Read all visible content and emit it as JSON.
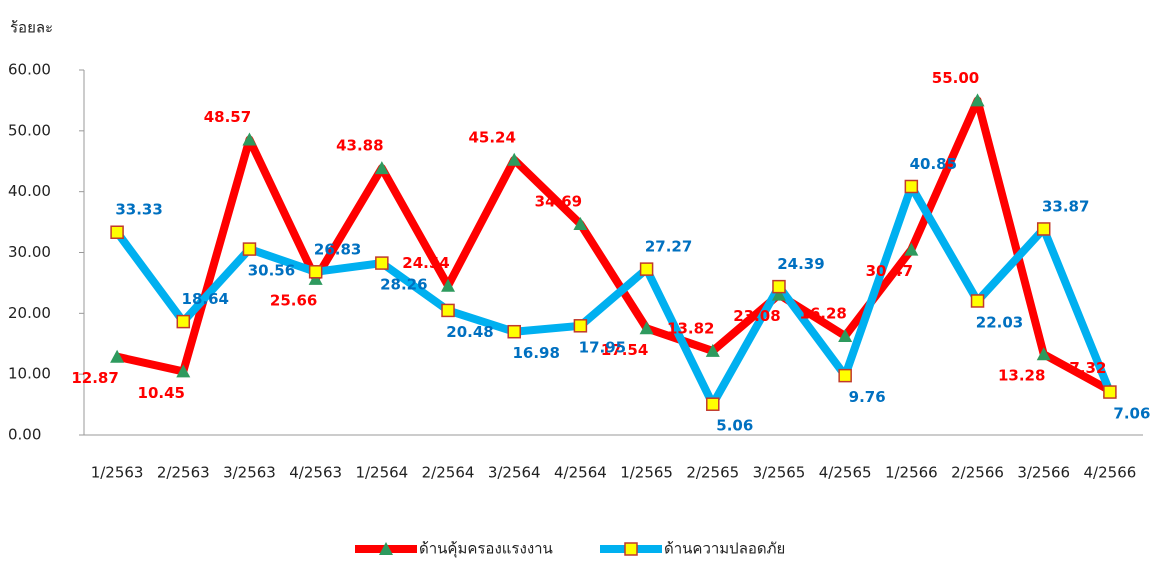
{
  "chart_data": {
    "type": "line",
    "y_label": "ร้อยละ",
    "categories": [
      "1/2563",
      "2/2563",
      "3/2563",
      "4/2563",
      "1/2564",
      "2/2564",
      "3/2564",
      "4/2564",
      "1/2565",
      "2/2565",
      "3/2565",
      "4/2565",
      "1/2566",
      "2/2566",
      "3/2566",
      "4/2566"
    ],
    "series": [
      {
        "name": "ด้านคุ้มครองแรงงาน",
        "color": "#ff0000",
        "marker_color": "#2e9a5e",
        "values": [
          12.87,
          10.45,
          48.57,
          25.66,
          43.88,
          24.54,
          45.24,
          34.69,
          17.54,
          13.82,
          23.08,
          16.28,
          30.47,
          55.0,
          13.28,
          7.32
        ],
        "value_labels": [
          "12.87",
          "10.45",
          "48.57",
          "25.66",
          "43.88",
          "24.54",
          "45.24",
          "34.69",
          "17.54",
          "13.82",
          "23.08",
          "16.28",
          "30.47",
          "55.00",
          "13.28",
          "7.32"
        ]
      },
      {
        "name": "ด้านความปลอดภัย",
        "color": "#00b0f0",
        "marker_color": "#ffff00",
        "values": [
          33.33,
          18.64,
          30.56,
          26.83,
          28.26,
          20.48,
          16.98,
          17.95,
          27.27,
          5.06,
          24.39,
          9.76,
          40.85,
          22.03,
          33.87,
          7.06
        ],
        "value_labels": [
          "33.33",
          "18.64",
          "30.56",
          "26.83",
          "28.26",
          "20.48",
          "16.98",
          "17.95",
          "27.27",
          "5.06",
          "24.39",
          "9.76",
          "40.85",
          "22.03",
          "33.87",
          "7.06"
        ]
      }
    ],
    "ylim": [
      0,
      60
    ],
    "yticks": [
      {
        "value": 0,
        "label": "0.00"
      },
      {
        "value": 10,
        "label": "10.00"
      },
      {
        "value": 20,
        "label": "20.00"
      },
      {
        "value": 30,
        "label": "30.00"
      },
      {
        "value": 40,
        "label": "40.00"
      },
      {
        "value": 50,
        "label": "50.00"
      },
      {
        "value": 60,
        "label": "60.00"
      }
    ],
    "label_colors": [
      "#ff0000",
      "#0070c0"
    ],
    "legend": "bottom"
  }
}
